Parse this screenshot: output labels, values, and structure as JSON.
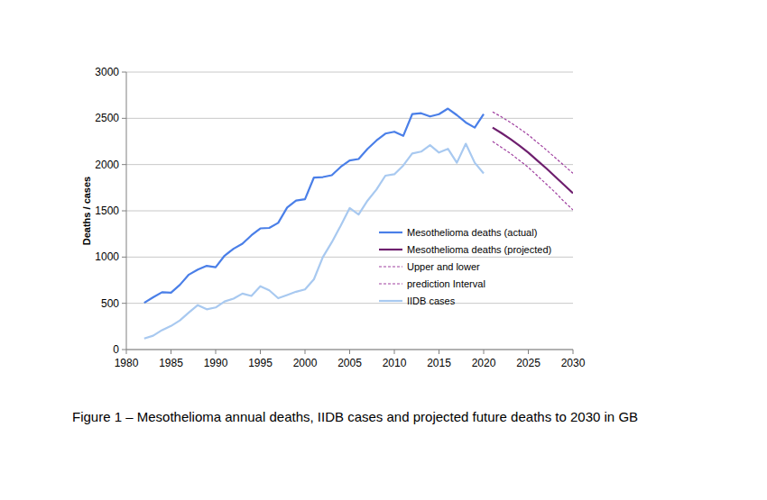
{
  "chart_data": {
    "type": "line",
    "title": "Figure 1 – Mesothelioma annual deaths, IIDB cases and projected future deaths to 2030 in GB",
    "y_label": "Deaths / cases",
    "x": [
      1982,
      1983,
      1984,
      1985,
      1986,
      1987,
      1988,
      1989,
      1990,
      1991,
      1992,
      1993,
      1994,
      1995,
      1996,
      1997,
      1998,
      1999,
      2000,
      2001,
      2002,
      2003,
      2004,
      2005,
      2006,
      2007,
      2008,
      2009,
      2010,
      2011,
      2012,
      2013,
      2014,
      2015,
      2016,
      2017,
      2018,
      2019,
      2020,
      2021,
      2022,
      2023,
      2024,
      2025,
      2026,
      2027,
      2028,
      2029,
      2030
    ],
    "series": [
      {
        "name": "Mesothelioma deaths (actual)",
        "color": "#4a7fe8",
        "line_style": "solid",
        "values": [
          505,
          565,
          620,
          615,
          700,
          810,
          865,
          905,
          890,
          1015,
          1090,
          1145,
          1235,
          1310,
          1315,
          1370,
          1535,
          1610,
          1625,
          1860,
          1865,
          1885,
          1975,
          2045,
          2060,
          2170,
          2260,
          2335,
          2355,
          2310,
          2545,
          2555,
          2520,
          2545,
          2605,
          2535,
          2455,
          2400,
          2545,
          null,
          null,
          null,
          null,
          null,
          null,
          null,
          null,
          null,
          null
        ]
      },
      {
        "name": "Mesothelioma deaths (projected)",
        "color": "#6e1f6e",
        "line_style": "solid",
        "values": [
          null,
          null,
          null,
          null,
          null,
          null,
          null,
          null,
          null,
          null,
          null,
          null,
          null,
          null,
          null,
          null,
          null,
          null,
          null,
          null,
          null,
          null,
          null,
          null,
          null,
          null,
          null,
          null,
          null,
          null,
          null,
          null,
          null,
          null,
          null,
          null,
          null,
          null,
          null,
          2400,
          2340,
          2275,
          2205,
          2130,
          2045,
          1960,
          1870,
          1780,
          1690
        ]
      },
      {
        "name": "Upper and lower",
        "color": "#a040a0",
        "line_style": "dashed",
        "values": [
          null,
          null,
          null,
          null,
          null,
          null,
          null,
          null,
          null,
          null,
          null,
          null,
          null,
          null,
          null,
          null,
          null,
          null,
          null,
          null,
          null,
          null,
          null,
          null,
          null,
          null,
          null,
          null,
          null,
          null,
          null,
          null,
          null,
          null,
          null,
          null,
          null,
          null,
          null,
          2570,
          2515,
          2455,
          2390,
          2320,
          2240,
          2160,
          2075,
          1990,
          1905
        ]
      },
      {
        "name": "prediction Interval",
        "color": "#a040a0",
        "line_style": "dashed",
        "values": [
          null,
          null,
          null,
          null,
          null,
          null,
          null,
          null,
          null,
          null,
          null,
          null,
          null,
          null,
          null,
          null,
          null,
          null,
          null,
          null,
          null,
          null,
          null,
          null,
          null,
          null,
          null,
          null,
          null,
          null,
          null,
          null,
          null,
          null,
          null,
          null,
          null,
          null,
          null,
          2250,
          2185,
          2120,
          2045,
          1970,
          1880,
          1790,
          1700,
          1600,
          1510
        ]
      },
      {
        "name": "IIDB cases",
        "color": "#a8c9f0",
        "line_style": "solid",
        "values": [
          120,
          150,
          210,
          255,
          315,
          400,
          480,
          435,
          455,
          520,
          550,
          605,
          580,
          685,
          640,
          555,
          590,
          625,
          650,
          760,
          1000,
          1160,
          1340,
          1530,
          1460,
          1610,
          1730,
          1880,
          1895,
          1990,
          2120,
          2140,
          2210,
          2130,
          2170,
          2020,
          2225,
          2020,
          1905,
          null,
          null,
          null,
          null,
          null,
          null,
          null,
          null,
          null,
          null
        ]
      }
    ],
    "xlim": [
      1980,
      2030
    ],
    "xticks": [
      1980,
      1985,
      1990,
      1995,
      2000,
      2005,
      2010,
      2015,
      2020,
      2025,
      2030
    ],
    "ylim": [
      0,
      3000
    ],
    "yticks": [
      0,
      500,
      1000,
      1500,
      2000,
      2500,
      3000
    ],
    "grid": true,
    "legend": "right"
  }
}
